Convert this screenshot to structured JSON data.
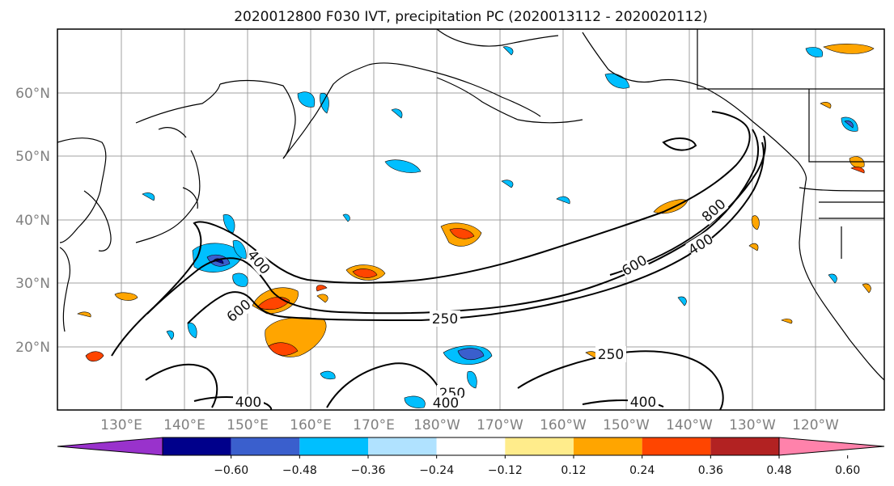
{
  "title": "2020012800 F030 IVT, precipitation PC (2020013112 - 2020020112)",
  "map": {
    "lon_ticks": [
      "130°E",
      "140°E",
      "150°E",
      "160°E",
      "170°E",
      "180°W",
      "170°W",
      "160°W",
      "150°W",
      "140°W",
      "130°W",
      "120°W"
    ],
    "lat_ticks": [
      "60°N",
      "50°N",
      "40°N",
      "30°N",
      "20°N"
    ],
    "lon_range": [
      120,
      251
    ],
    "lat_range": [
      10,
      70
    ],
    "contour_labels": [
      "400",
      "600",
      "250",
      "600",
      "400",
      "800",
      "250",
      "250",
      "400",
      "400",
      "400"
    ],
    "colors": {
      "coast": "#000000",
      "grid": "#a0a0a0",
      "contour": "#000000"
    }
  },
  "colorbar": {
    "labels": [
      "−0.60",
      "−0.48",
      "−0.36",
      "−0.24",
      "−0.12",
      "0.12",
      "0.24",
      "0.36",
      "0.48",
      "0.60"
    ],
    "colors": [
      "#9932CC",
      "#00008B",
      "#3A5FCD",
      "#00BFFF",
      "#B0E2FF",
      "#FFFFFF",
      "#FFEC8B",
      "#FFA500",
      "#FF4500",
      "#B22222",
      "#FF82AB"
    ]
  }
}
